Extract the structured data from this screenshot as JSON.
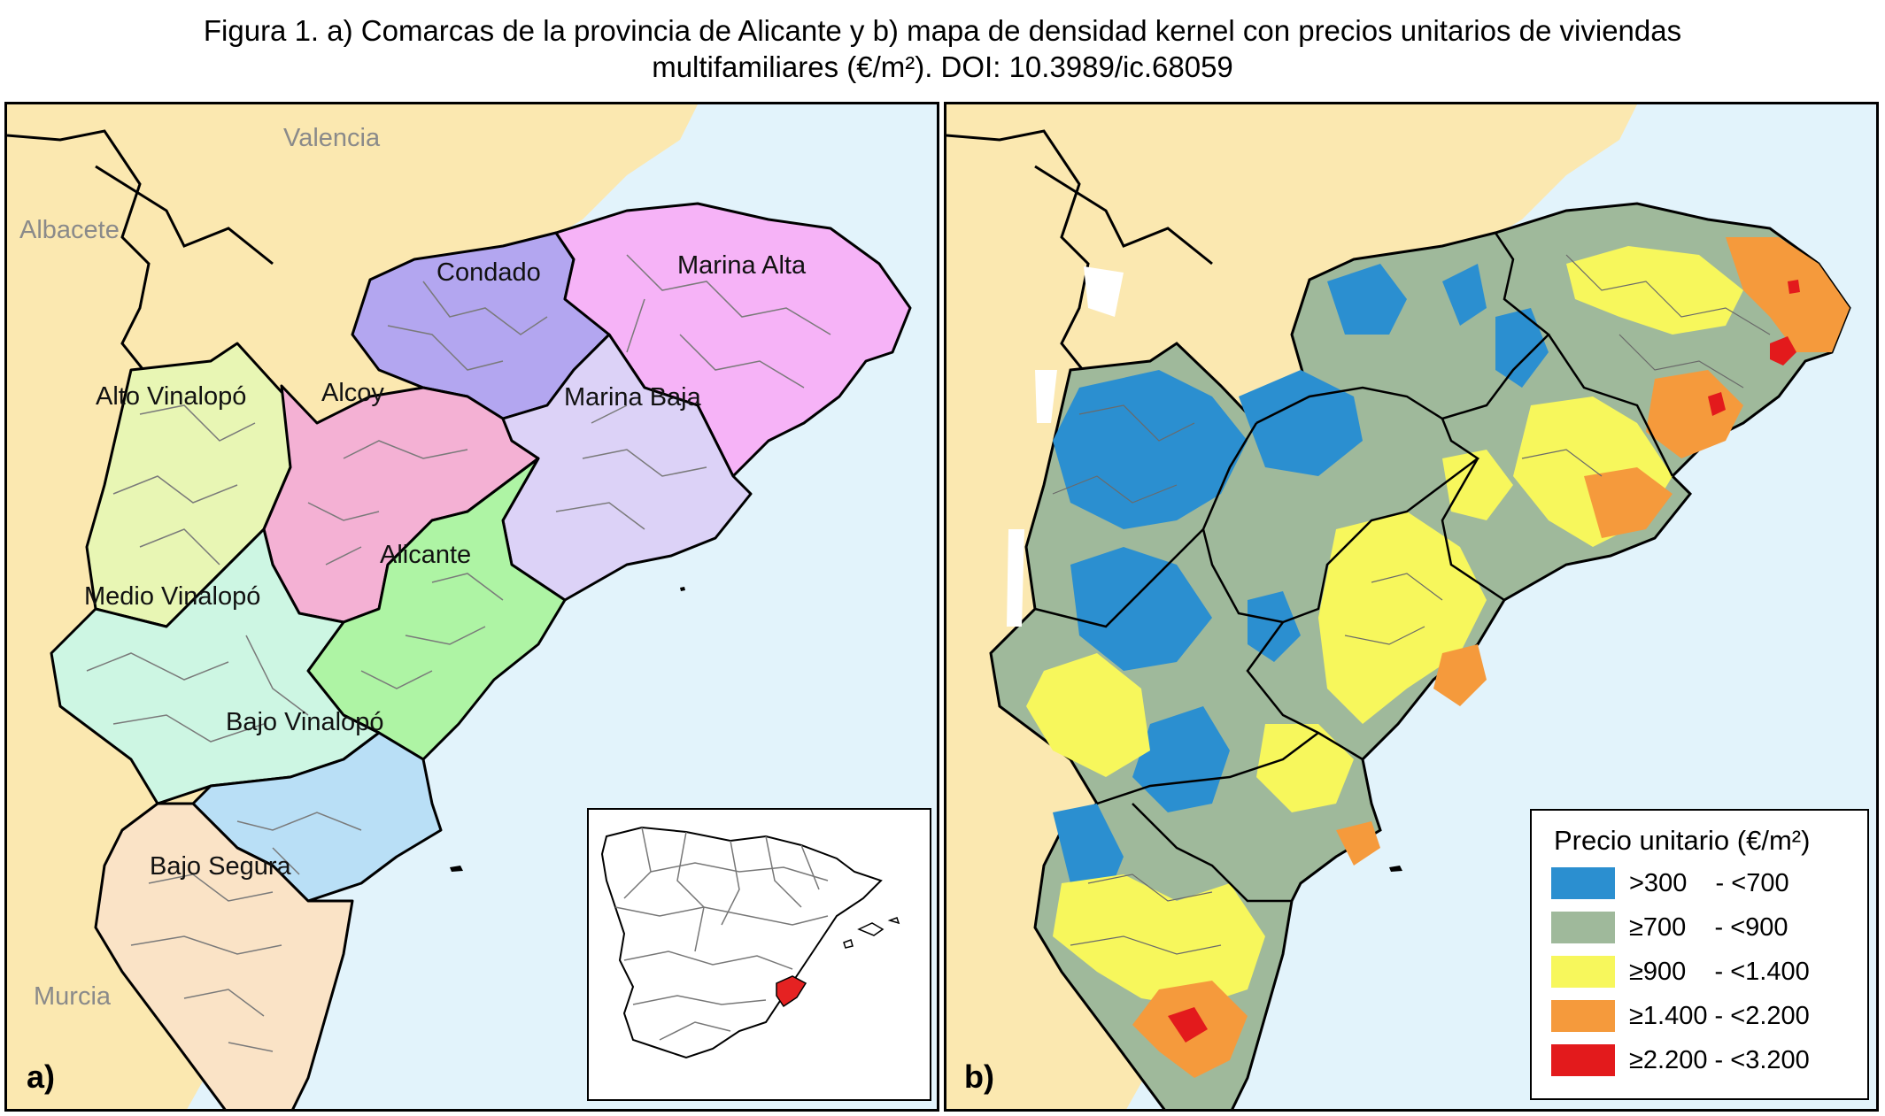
{
  "caption": {
    "line1": "Figura 1. a) Comarcas de la provincia de Alicante y b) mapa de densidad kernel con precios unitarios de viviendas",
    "line2": "multifamiliares (€/m²). DOI: 10.3989/ic.68059"
  },
  "colors": {
    "sea": "#e2f3fb",
    "land_neighbor": "#fbe8b0",
    "outline": "#000000",
    "municipal_lines": "#7a7a7a"
  },
  "panel_a": {
    "letter": "a)",
    "neighbors": [
      "Valencia",
      "Albacete",
      "Murcia"
    ],
    "comarcas": [
      {
        "name": "Condado",
        "color": "#b3a6f0"
      },
      {
        "name": "Marina Alta",
        "color": "#f6b3f7"
      },
      {
        "name": "Alto Vinalopó",
        "color": "#e8f6b4"
      },
      {
        "name": "Alcoy",
        "color": "#f4b1d4"
      },
      {
        "name": "Marina Baja",
        "color": "#dcd2f7"
      },
      {
        "name": "Alicante",
        "color": "#aef4a4"
      },
      {
        "name": "Medio Vinalopó",
        "color": "#cdf6e3"
      },
      {
        "name": "Bajo Vinalopó",
        "color": "#b9dff6"
      },
      {
        "name": "Bajo Segura",
        "color": "#fae3c6"
      }
    ],
    "inset": {
      "content": "Spain provinces locator map",
      "highlight_color": "#e52222"
    }
  },
  "panel_b": {
    "letter": "b)",
    "legend": {
      "title": "Precio unitario (€/m²)",
      "classes": [
        {
          "label": ">300    - <700",
          "color": "#2b8fd0"
        },
        {
          "label": "≥700    - <900",
          "color": "#9fb99b"
        },
        {
          "label": "≥900    - <1.400",
          "color": "#f7f75c"
        },
        {
          "label": "≥1.400 - <2.200",
          "color": "#f59a3c"
        },
        {
          "label": "≥2.200 - <3.200",
          "color": "#e31a1c"
        }
      ]
    }
  }
}
